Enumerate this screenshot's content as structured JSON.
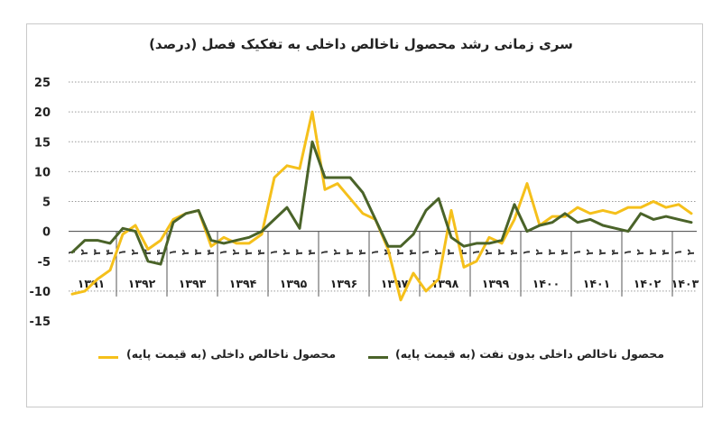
{
  "chart_data": {
    "type": "line",
    "title": "سری زمانی رشد محصول ناخالص داخلی به تفکیک فصل (درصد)",
    "ylim": [
      -15,
      25
    ],
    "yticks": [
      25,
      20,
      15,
      10,
      5,
      0,
      -5,
      -10,
      -15
    ],
    "ytick_labels": [
      "25",
      "20",
      "15",
      "10",
      "5",
      "0",
      "-5",
      "-10",
      "-15"
    ],
    "grid": true,
    "legend_position": "bottom",
    "years": [
      "۱۳۹۱",
      "۱۳۹۲",
      "۱۳۹۳",
      "۱۳۹۴",
      "۱۳۹۵",
      "۱۳۹۶",
      "۱۳۹۷",
      "۱۳۹۸",
      "۱۳۹۹",
      "۱۴۰۰",
      "۱۴۰۱",
      "۱۴۰۲",
      "۱۴۰۳"
    ],
    "quarter_labels": [
      "۱",
      "۲",
      "۳",
      "۴"
    ],
    "quarters_per_year": [
      4,
      4,
      4,
      4,
      4,
      4,
      4,
      4,
      4,
      4,
      4,
      4,
      2
    ],
    "series": [
      {
        "name": "محصول ناخالص داخلی (به قیمت پایه)",
        "color": "#f5c01b",
        "values": [
          -10.5,
          -10,
          -8,
          -6.5,
          -0.5,
          1,
          -3,
          -1.5,
          2,
          3,
          3.5,
          -2.5,
          -1,
          -2,
          -2,
          -0.5,
          9,
          11,
          10.5,
          20,
          7,
          8,
          5.5,
          3,
          2,
          -3,
          -11.5,
          -7,
          -10,
          -8,
          3.5,
          -6,
          -5,
          -1,
          -2,
          2,
          8,
          1,
          2.5,
          2.5,
          4,
          3,
          3.5,
          3,
          4,
          4,
          5,
          4,
          4.5,
          3
        ]
      },
      {
        "name": "محصول ناخالص داخلی بدون نفت (به قیمت پایه)",
        "color": "#4a6329",
        "values": [
          -3.5,
          -1.5,
          -1.5,
          -2,
          0.5,
          0,
          -5,
          -5.5,
          1.5,
          3,
          3.5,
          -1.5,
          -2,
          -1.5,
          -1,
          0,
          2,
          4,
          0.5,
          15,
          9,
          9,
          9,
          6.5,
          2,
          -2.5,
          -2.5,
          -0.5,
          3.5,
          5.5,
          -1,
          -2.5,
          -2,
          -2,
          -1.5,
          4.5,
          0,
          1,
          1.5,
          3,
          1.5,
          2,
          1,
          0.5,
          0,
          3,
          2,
          2.5,
          2,
          1.5
        ]
      }
    ]
  }
}
